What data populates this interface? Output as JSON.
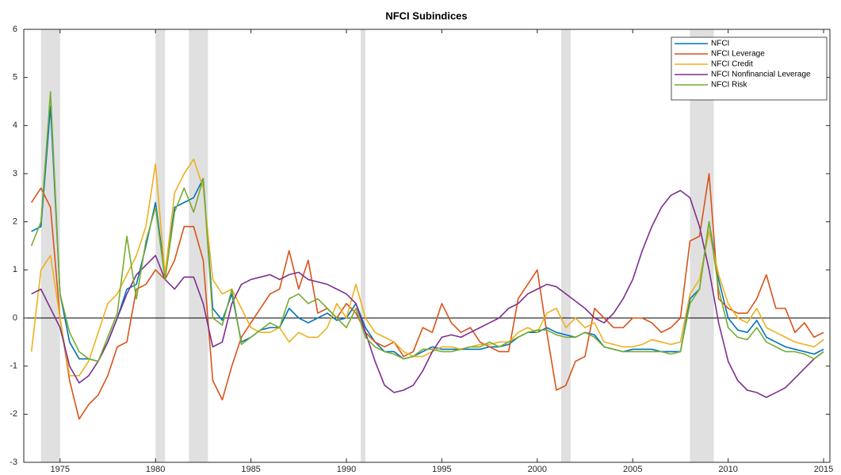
{
  "chart_data": {
    "type": "line",
    "title": "NFCI Subindices",
    "x": [
      1973.5,
      1974.0,
      1974.5,
      1975.0,
      1975.5,
      1976.0,
      1976.5,
      1977.0,
      1977.5,
      1978.0,
      1978.5,
      1979.0,
      1979.5,
      1980.0,
      1980.5,
      1981.0,
      1981.5,
      1982.0,
      1982.5,
      1983.0,
      1983.5,
      1984.0,
      1984.5,
      1985.0,
      1985.5,
      1986.0,
      1986.5,
      1987.0,
      1987.5,
      1988.0,
      1988.5,
      1989.0,
      1989.5,
      1990.0,
      1990.5,
      1991.0,
      1991.5,
      1992.0,
      1992.5,
      1993.0,
      1993.5,
      1994.0,
      1994.5,
      1995.0,
      1995.5,
      1996.0,
      1996.5,
      1997.0,
      1997.5,
      1998.0,
      1998.5,
      1999.0,
      1999.5,
      2000.0,
      2000.5,
      2001.0,
      2001.5,
      2002.0,
      2002.5,
      2003.0,
      2003.5,
      2004.0,
      2004.5,
      2005.0,
      2005.5,
      2006.0,
      2006.5,
      2007.0,
      2007.5,
      2008.0,
      2008.5,
      2009.0,
      2009.5,
      2010.0,
      2010.5,
      2011.0,
      2011.5,
      2012.0,
      2012.5,
      2013.0,
      2013.5,
      2014.0,
      2014.5,
      2015.0
    ],
    "series": [
      {
        "name": "NFCI",
        "color": "#0072bd",
        "values": [
          1.8,
          1.9,
          4.4,
          0.5,
          -0.5,
          -0.85,
          -0.85,
          -0.9,
          -0.5,
          0.0,
          0.6,
          0.7,
          1.5,
          2.4,
          0.9,
          2.3,
          2.4,
          2.5,
          2.9,
          0.2,
          -0.05,
          0.5,
          -0.5,
          -0.4,
          -0.25,
          -0.2,
          -0.2,
          0.2,
          0.0,
          -0.1,
          0.0,
          0.1,
          -0.05,
          0.0,
          0.3,
          -0.2,
          -0.5,
          -0.7,
          -0.7,
          -0.85,
          -0.8,
          -0.7,
          -0.6,
          -0.65,
          -0.65,
          -0.65,
          -0.65,
          -0.65,
          -0.6,
          -0.6,
          -0.55,
          -0.4,
          -0.3,
          -0.3,
          -0.2,
          -0.3,
          -0.35,
          -0.4,
          -0.3,
          -0.35,
          -0.6,
          -0.65,
          -0.7,
          -0.65,
          -0.65,
          -0.65,
          -0.7,
          -0.7,
          -0.7,
          0.4,
          0.6,
          2.0,
          0.8,
          0.0,
          -0.25,
          -0.3,
          -0.05,
          -0.4,
          -0.5,
          -0.6,
          -0.65,
          -0.7,
          -0.75,
          -0.65
        ]
      },
      {
        "name": "NFCI Leverage",
        "color": "#d95319",
        "values": [
          2.4,
          2.7,
          2.3,
          0.0,
          -1.3,
          -2.1,
          -1.8,
          -1.6,
          -1.2,
          -0.6,
          -0.5,
          0.6,
          0.7,
          1.0,
          0.8,
          1.2,
          1.9,
          1.9,
          1.2,
          -1.3,
          -1.7,
          -1.0,
          -0.4,
          -0.1,
          0.2,
          0.5,
          0.6,
          1.4,
          0.6,
          1.2,
          0.1,
          0.2,
          0.0,
          0.3,
          0.1,
          -0.3,
          -0.5,
          -0.6,
          -0.5,
          -0.8,
          -0.7,
          -0.2,
          -0.3,
          0.3,
          -0.1,
          -0.3,
          -0.2,
          -0.5,
          -0.6,
          -0.7,
          -0.7,
          0.4,
          0.7,
          1.0,
          -0.3,
          -1.5,
          -1.4,
          -0.9,
          -0.8,
          0.2,
          0.0,
          -0.2,
          -0.2,
          0.0,
          0.0,
          -0.1,
          -0.3,
          -0.2,
          0.0,
          1.6,
          1.7,
          3.0,
          0.4,
          0.2,
          0.1,
          0.1,
          0.4,
          0.9,
          0.2,
          0.2,
          -0.3,
          -0.1,
          -0.4,
          -0.3
        ]
      },
      {
        "name": "NFCI Credit",
        "color": "#edb120",
        "values": [
          -0.7,
          1.0,
          1.3,
          0.0,
          -1.2,
          -1.2,
          -0.9,
          -0.3,
          0.3,
          0.5,
          0.9,
          1.3,
          1.9,
          3.2,
          0.9,
          2.6,
          3.0,
          3.3,
          2.7,
          0.8,
          0.5,
          0.6,
          0.2,
          -0.2,
          -0.3,
          -0.3,
          -0.2,
          -0.5,
          -0.3,
          -0.4,
          -0.4,
          -0.2,
          0.3,
          0.0,
          0.7,
          0.0,
          -0.3,
          -0.4,
          -0.5,
          -0.7,
          -0.8,
          -0.8,
          -0.7,
          -0.6,
          -0.6,
          -0.65,
          -0.6,
          -0.55,
          -0.55,
          -0.5,
          -0.5,
          -0.3,
          -0.2,
          -0.3,
          0.1,
          0.2,
          -0.2,
          0.0,
          -0.2,
          -0.1,
          -0.5,
          -0.55,
          -0.6,
          -0.6,
          -0.55,
          -0.45,
          -0.5,
          -0.55,
          -0.5,
          0.5,
          0.8,
          1.8,
          0.9,
          0.3,
          0.0,
          -0.1,
          0.2,
          -0.2,
          -0.3,
          -0.4,
          -0.5,
          -0.55,
          -0.6,
          -0.45
        ]
      },
      {
        "name": "NFCI Nonfinancial Leverage",
        "color": "#7e2f8e",
        "values": [
          0.5,
          0.6,
          0.2,
          -0.2,
          -1.0,
          -1.35,
          -1.2,
          -0.9,
          -0.5,
          0.0,
          0.5,
          0.9,
          1.1,
          1.3,
          0.8,
          0.6,
          0.85,
          0.85,
          0.3,
          -0.6,
          -0.5,
          0.3,
          0.7,
          0.8,
          0.85,
          0.9,
          0.8,
          0.9,
          0.95,
          0.8,
          0.75,
          0.7,
          0.6,
          0.5,
          0.3,
          -0.3,
          -0.9,
          -1.4,
          -1.55,
          -1.5,
          -1.4,
          -1.1,
          -0.7,
          -0.4,
          -0.35,
          -0.4,
          -0.3,
          -0.2,
          -0.1,
          0.0,
          0.2,
          0.3,
          0.5,
          0.6,
          0.7,
          0.65,
          0.5,
          0.35,
          0.2,
          0.0,
          -0.1,
          0.1,
          0.4,
          0.8,
          1.4,
          1.9,
          2.3,
          2.55,
          2.65,
          2.5,
          1.9,
          1.0,
          -0.1,
          -0.9,
          -1.3,
          -1.5,
          -1.55,
          -1.65,
          -1.55,
          -1.45,
          -1.25,
          -1.05,
          -0.85,
          -0.7
        ]
      },
      {
        "name": "NFCI Risk",
        "color": "#77ac30",
        "values": [
          1.5,
          2.0,
          4.7,
          0.5,
          -0.3,
          -0.7,
          -0.85,
          -0.9,
          -0.4,
          0.1,
          1.7,
          0.4,
          1.6,
          2.3,
          0.8,
          2.2,
          2.7,
          2.2,
          2.9,
          0.0,
          -0.15,
          0.6,
          -0.55,
          -0.4,
          -0.25,
          -0.1,
          -0.2,
          0.4,
          0.5,
          0.3,
          0.4,
          0.2,
          0.0,
          -0.2,
          0.2,
          -0.4,
          -0.6,
          -0.7,
          -0.75,
          -0.85,
          -0.8,
          -0.65,
          -0.65,
          -0.7,
          -0.7,
          -0.65,
          -0.6,
          -0.6,
          -0.5,
          -0.6,
          -0.5,
          -0.4,
          -0.3,
          -0.25,
          -0.25,
          -0.35,
          -0.4,
          -0.4,
          -0.3,
          -0.4,
          -0.6,
          -0.65,
          -0.7,
          -0.7,
          -0.7,
          -0.7,
          -0.7,
          -0.75,
          -0.7,
          0.3,
          0.6,
          2.0,
          0.6,
          -0.2,
          -0.4,
          -0.45,
          -0.2,
          -0.5,
          -0.6,
          -0.7,
          -0.7,
          -0.75,
          -0.85,
          -0.7
        ]
      }
    ],
    "shaded_periods": [
      [
        1974.0,
        1975.0
      ],
      [
        1980.0,
        1980.5
      ],
      [
        1981.75,
        1982.75
      ],
      [
        1990.75,
        1991.0
      ],
      [
        2001.25,
        2001.75
      ],
      [
        2008.0,
        2009.25
      ]
    ],
    "shade_color": "#e0e0e0",
    "hline": 0,
    "xlim": [
      1973.1,
      2015.33
    ],
    "ylim": [
      -3,
      6
    ],
    "xticks": [
      1975,
      1980,
      1985,
      1990,
      1995,
      2000,
      2005,
      2010,
      2015
    ],
    "yticks": [
      -3,
      -2,
      -1,
      0,
      1,
      2,
      3,
      4,
      5,
      6
    ],
    "legend": "northeast"
  }
}
